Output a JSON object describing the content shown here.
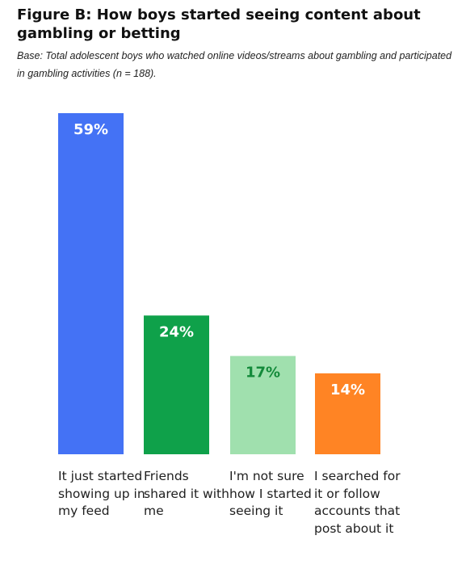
{
  "header": {
    "title": "Figure B: How boys started seeing content about gambling or betting",
    "base": "Base: Total adolescent boys who watched online videos/streams about gambling and participated in gambling activities (n = 188)."
  },
  "chart_data": {
    "type": "bar",
    "categories": [
      "It just started showing up in my feed",
      "Friends shared it with me",
      "I'm not sure how I started seeing it",
      "I searched for it or follow accounts that post about it"
    ],
    "values": [
      59,
      24,
      17,
      14
    ],
    "value_labels": [
      "59%",
      "24%",
      "17%",
      "14%"
    ],
    "unit": "%",
    "colors": [
      "#4472F5",
      "#0FA14A",
      "#A0E0AE",
      "#FF8424"
    ],
    "label_colors": [
      "#ffffff",
      "#ffffff",
      "#138A3A",
      "#ffffff"
    ],
    "ylim": [
      0,
      59
    ],
    "grid": false,
    "legend": "none"
  }
}
